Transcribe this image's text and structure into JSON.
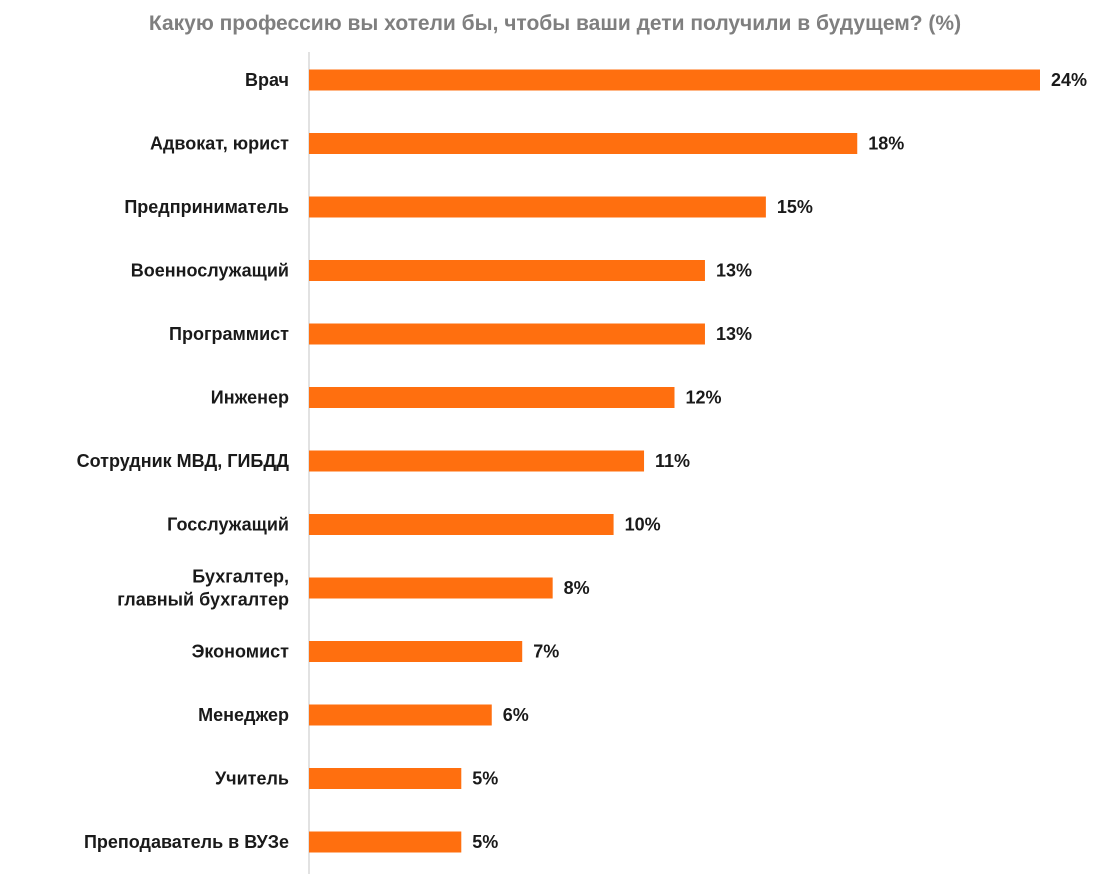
{
  "chart_data": {
    "type": "bar",
    "orientation": "horizontal",
    "title": "Какую профессию вы хотели бы, чтобы ваши дети получили в будущем? (%)",
    "categories": [
      "Врач",
      "Адвокат, юрист",
      "Предприниматель",
      "Военнослужащий",
      "Программист",
      "Инженер",
      "Сотрудник МВД, ГИБДД",
      "Госслужащий",
      "Бухгалтер, главный бухгалтер",
      "Экономист",
      "Менеджер",
      "Учитель",
      "Преподаватель в ВУЗе"
    ],
    "category_lines": [
      [
        "Врач"
      ],
      [
        "Адвокат, юрист"
      ],
      [
        "Предприниматель"
      ],
      [
        "Военнослужащий"
      ],
      [
        "Программист"
      ],
      [
        "Инженер"
      ],
      [
        "Сотрудник МВД, ГИБДД"
      ],
      [
        "Госслужащий"
      ],
      [
        "Бухгалтер,",
        "главный бухгалтер"
      ],
      [
        "Экономист"
      ],
      [
        "Менеджер"
      ],
      [
        "Учитель"
      ],
      [
        "Преподаватель в ВУЗе"
      ]
    ],
    "values": [
      24,
      18,
      15,
      13,
      13,
      12,
      11,
      10,
      8,
      7,
      6,
      5,
      5
    ],
    "value_labels": [
      "24%",
      "18%",
      "15%",
      "13%",
      "13%",
      "12%",
      "11%",
      "10%",
      "8%",
      "7%",
      "6%",
      "5%",
      "5%"
    ],
    "xlim": [
      0,
      24
    ],
    "grid": false,
    "legend": "none",
    "colors": {
      "bar": "#ff6f0f",
      "axis": "#d9d9d9",
      "title": "#7f7f7f",
      "text": "#1a1a1a"
    }
  }
}
